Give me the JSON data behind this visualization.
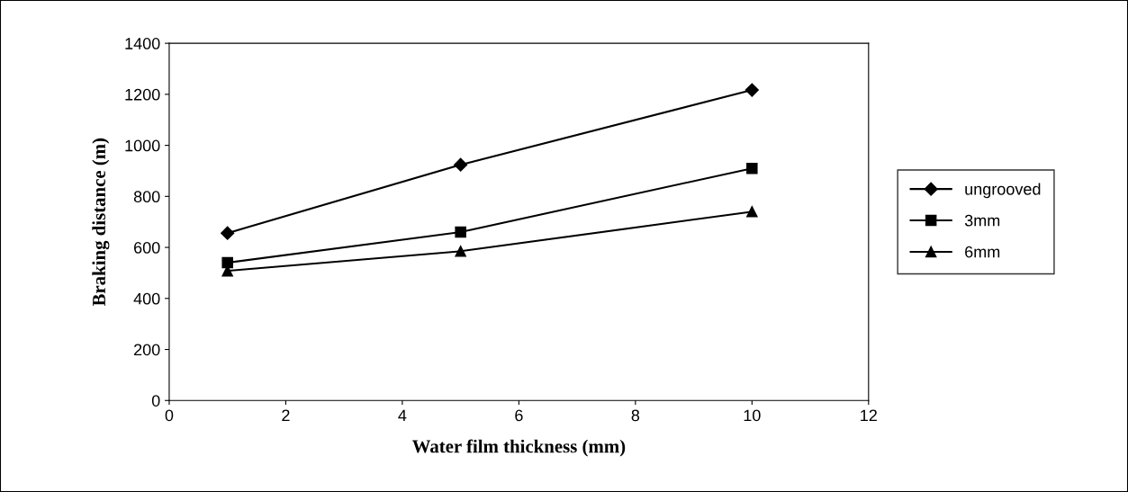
{
  "chart_data": {
    "type": "line",
    "xlabel": "Water film thickness (mm)",
    "ylabel": "Braking distance (m)",
    "xlim": [
      0,
      12
    ],
    "xticks": [
      0,
      2,
      4,
      6,
      8,
      10,
      12
    ],
    "ylim": [
      0,
      1400
    ],
    "yticks": [
      0,
      200,
      400,
      600,
      800,
      1000,
      1200,
      1400
    ],
    "x": [
      1,
      5,
      10
    ],
    "grid": false,
    "legend": "right",
    "line_style": "solid",
    "series": [
      {
        "name": "ungrooved",
        "color": "#000000",
        "marker": "diamond",
        "values": [
          656,
          924,
          1217
        ]
      },
      {
        "name": "3mm",
        "color": "#000000",
        "marker": "square",
        "values": [
          540,
          660,
          910
        ]
      },
      {
        "name": "6mm",
        "color": "#000000",
        "marker": "triangle",
        "values": [
          508,
          585,
          740
        ]
      }
    ]
  }
}
